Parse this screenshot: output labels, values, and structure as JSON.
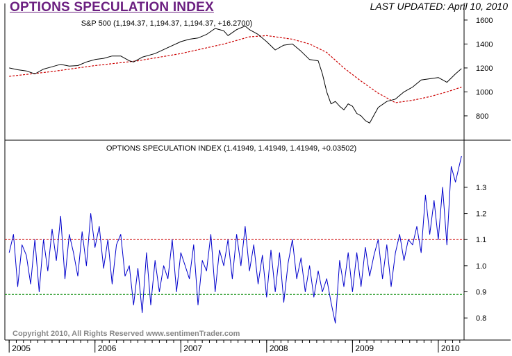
{
  "header": {
    "title": "OPTIONS SPECULATION INDEX",
    "updated": "LAST UPDATED:  April 10, 2010",
    "copyright": "Copyright 2010, All Rights Reserved  www.sentimenTrader.com"
  },
  "colors": {
    "price_line": "#000000",
    "moving_average": "#cc0000",
    "index_line": "#0000cc",
    "upper_threshold": "#cc0000",
    "lower_threshold": "#008800"
  },
  "chart_data": [
    {
      "type": "line",
      "title": "S&P 500 (1,194.37, 1,194.37, 1,194.37, +16.2700)",
      "ylim": [
        620,
        1640
      ],
      "yticks": [
        "800",
        "1000",
        "1200",
        "1400",
        "1600"
      ],
      "ytick_values": [
        800,
        1000,
        1200,
        1400,
        1600
      ],
      "series": [
        {
          "key": "price",
          "x": [
            2005.0,
            2005.1,
            2005.2,
            2005.3,
            2005.4,
            2005.5,
            2005.6,
            2005.7,
            2005.8,
            2005.9,
            2006.0,
            2006.1,
            2006.2,
            2006.3,
            2006.4,
            2006.45,
            2006.55,
            2006.7,
            2006.85,
            2007.0,
            2007.1,
            2007.2,
            2007.3,
            2007.4,
            2007.5,
            2007.55,
            2007.65,
            2007.75,
            2007.8,
            2007.9,
            2008.0,
            2008.1,
            2008.2,
            2008.3,
            2008.4,
            2008.5,
            2008.6,
            2008.65,
            2008.7,
            2008.75,
            2008.8,
            2008.85,
            2008.9,
            2008.95,
            2009.0,
            2009.05,
            2009.1,
            2009.15,
            2009.2,
            2009.3,
            2009.4,
            2009.5,
            2009.6,
            2009.7,
            2009.8,
            2009.9,
            2010.0,
            2010.1,
            2010.2,
            2010.27
          ],
          "y": [
            1200,
            1185,
            1175,
            1150,
            1190,
            1210,
            1230,
            1215,
            1220,
            1250,
            1270,
            1280,
            1300,
            1300,
            1260,
            1250,
            1290,
            1320,
            1370,
            1420,
            1440,
            1450,
            1480,
            1530,
            1510,
            1470,
            1520,
            1550,
            1520,
            1480,
            1420,
            1350,
            1390,
            1400,
            1340,
            1270,
            1260,
            1150,
            1000,
            900,
            920,
            880,
            850,
            900,
            880,
            820,
            800,
            760,
            740,
            870,
            920,
            940,
            1000,
            1040,
            1100,
            1110,
            1120,
            1080,
            1150,
            1194.37
          ]
        },
        {
          "key": "moving_average",
          "x": [
            2005.0,
            2005.5,
            2006.0,
            2006.5,
            2007.0,
            2007.5,
            2007.8,
            2008.0,
            2008.3,
            2008.5,
            2008.7,
            2008.9,
            2009.1,
            2009.3,
            2009.5,
            2009.7,
            2009.9,
            2010.1,
            2010.27
          ],
          "y": [
            1130,
            1170,
            1220,
            1260,
            1320,
            1400,
            1460,
            1470,
            1440,
            1400,
            1330,
            1200,
            1090,
            990,
            910,
            930,
            960,
            1000,
            1040
          ]
        }
      ]
    },
    {
      "type": "line",
      "title": "OPTIONS SPECULATION INDEX (1.41949, 1.41949, 1.41949, +0.03502)",
      "ylim": [
        0.75,
        1.43
      ],
      "yticks": [
        "0.8",
        "0.9",
        "1.0",
        "1.1",
        "1.2",
        "1.3"
      ],
      "ytick_values": [
        0.8,
        0.9,
        1.0,
        1.1,
        1.2,
        1.3
      ],
      "reference_lines": [
        1.1,
        0.89
      ],
      "series": [
        {
          "key": "index",
          "x": [
            2005.0,
            2005.05,
            2005.1,
            2005.15,
            2005.2,
            2005.25,
            2005.3,
            2005.35,
            2005.4,
            2005.45,
            2005.5,
            2005.55,
            2005.6,
            2005.65,
            2005.7,
            2005.75,
            2005.8,
            2005.85,
            2005.9,
            2005.95,
            2006.0,
            2006.05,
            2006.1,
            2006.15,
            2006.2,
            2006.25,
            2006.3,
            2006.35,
            2006.4,
            2006.45,
            2006.5,
            2006.55,
            2006.6,
            2006.65,
            2006.7,
            2006.75,
            2006.8,
            2006.85,
            2006.9,
            2006.95,
            2007.0,
            2007.05,
            2007.1,
            2007.15,
            2007.2,
            2007.25,
            2007.3,
            2007.35,
            2007.4,
            2007.45,
            2007.5,
            2007.55,
            2007.6,
            2007.65,
            2007.7,
            2007.75,
            2007.8,
            2007.85,
            2007.9,
            2007.95,
            2008.0,
            2008.05,
            2008.1,
            2008.15,
            2008.2,
            2008.25,
            2008.3,
            2008.35,
            2008.4,
            2008.45,
            2008.5,
            2008.55,
            2008.6,
            2008.65,
            2008.7,
            2008.75,
            2008.8,
            2008.85,
            2008.9,
            2008.95,
            2009.0,
            2009.05,
            2009.1,
            2009.15,
            2009.2,
            2009.25,
            2009.3,
            2009.35,
            2009.4,
            2009.45,
            2009.5,
            2009.55,
            2009.6,
            2009.65,
            2009.7,
            2009.75,
            2009.8,
            2009.85,
            2009.9,
            2009.95,
            2010.0,
            2010.05,
            2010.1,
            2010.15,
            2010.2,
            2010.27
          ],
          "y": [
            1.05,
            1.12,
            0.92,
            1.08,
            1.04,
            0.93,
            1.1,
            0.9,
            1.1,
            0.98,
            1.14,
            1.02,
            1.19,
            0.95,
            1.12,
            1.05,
            0.96,
            1.13,
            1.0,
            1.2,
            1.07,
            1.15,
            0.99,
            1.1,
            0.93,
            1.08,
            1.12,
            0.96,
            1.0,
            0.85,
            0.99,
            0.82,
            1.05,
            0.85,
            1.02,
            0.9,
            1.0,
            0.95,
            1.1,
            0.9,
            1.05,
            1.0,
            0.95,
            1.08,
            0.85,
            1.02,
            0.98,
            1.12,
            0.9,
            1.06,
            1.0,
            1.1,
            0.95,
            1.12,
            1.0,
            1.15,
            0.98,
            1.08,
            0.93,
            1.04,
            0.88,
            1.06,
            0.9,
            1.05,
            0.86,
            1.01,
            1.1,
            0.95,
            1.03,
            0.9,
            1.0,
            0.88,
            0.98,
            0.9,
            0.95,
            0.86,
            0.78,
            1.02,
            0.92,
            1.05,
            0.9,
            1.05,
            0.92,
            1.07,
            0.96,
            1.04,
            1.1,
            0.95,
            1.08,
            0.92,
            1.05,
            1.12,
            1.02,
            1.1,
            1.08,
            1.15,
            1.05,
            1.27,
            1.12,
            1.25,
            1.1,
            1.3,
            1.08,
            1.38,
            1.32,
            1.41949
          ]
        }
      ]
    }
  ],
  "x_axis": {
    "labels": [
      "2005",
      "2006",
      "2007",
      "2008",
      "2009",
      "2010"
    ],
    "positions": [
      2005.0,
      2006.0,
      2007.0,
      2008.0,
      2009.0,
      2010.0
    ]
  }
}
